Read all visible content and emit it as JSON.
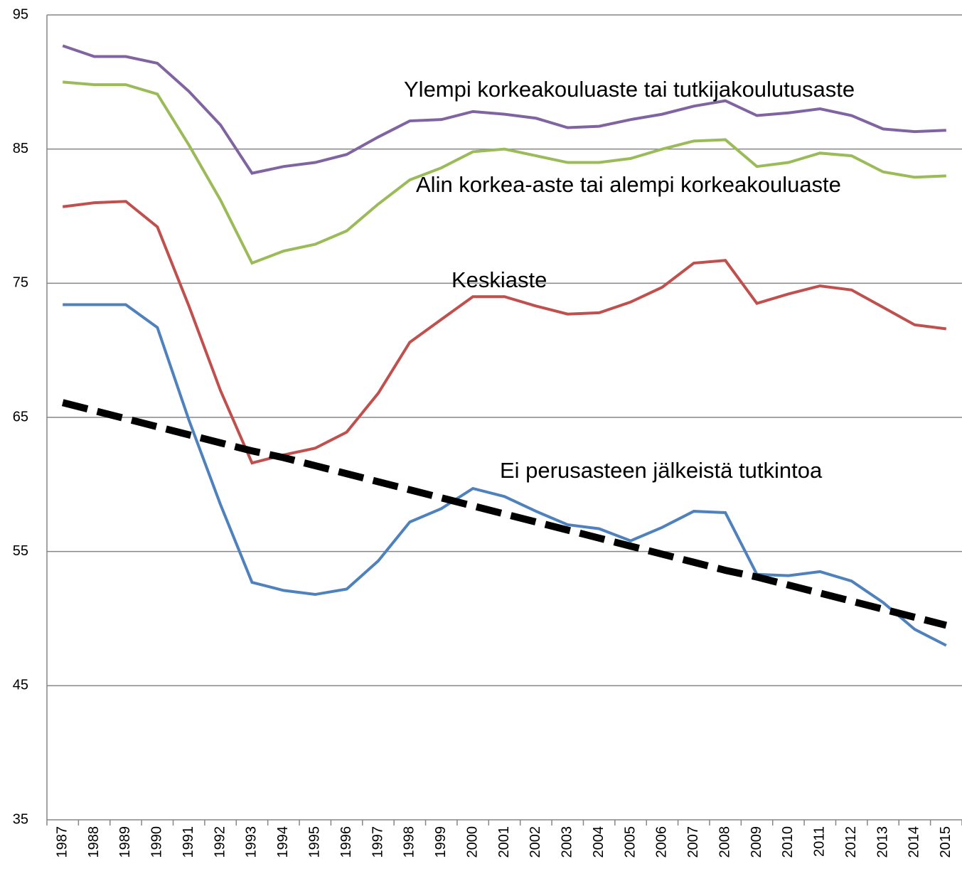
{
  "chart_data": {
    "type": "line",
    "categories": [
      "1987",
      "1988",
      "1989",
      "1990",
      "1991",
      "1992",
      "1993",
      "1994",
      "1995",
      "1996",
      "1997",
      "1998",
      "1999",
      "2000",
      "2001",
      "2002",
      "2003",
      "2004",
      "2005",
      "2006",
      "2007",
      "2008",
      "2009",
      "2010",
      "2011",
      "2012",
      "2013",
      "2014",
      "2015"
    ],
    "series": [
      {
        "color": "#8064a2",
        "values": [
          92.7,
          91.9,
          91.9,
          91.4,
          89.3,
          86.8,
          83.2,
          83.7,
          84.0,
          84.6,
          85.9,
          87.1,
          87.2,
          87.8,
          87.6,
          87.3,
          86.6,
          86.7,
          87.2,
          87.6,
          88.2,
          88.6,
          87.5,
          87.7,
          88.0,
          87.5,
          86.5,
          86.3,
          86.4
        ]
      },
      {
        "color": "#9bbb59",
        "values": [
          90.0,
          89.8,
          89.8,
          89.1,
          85.3,
          81.2,
          76.5,
          77.4,
          77.9,
          78.9,
          80.9,
          82.7,
          83.6,
          84.8,
          85.0,
          84.5,
          84.0,
          84.0,
          84.3,
          85.0,
          85.6,
          85.7,
          83.7,
          84.0,
          84.7,
          84.5,
          83.3,
          82.9,
          83.0
        ]
      },
      {
        "color": "#c0504d",
        "values": [
          80.7,
          81.0,
          81.1,
          79.2,
          73.3,
          67.0,
          61.6,
          62.2,
          62.7,
          63.9,
          66.8,
          70.6,
          72.3,
          74.0,
          74.0,
          73.3,
          72.7,
          72.8,
          73.6,
          74.7,
          76.5,
          76.7,
          73.5,
          74.2,
          74.8,
          74.5,
          73.2,
          71.9,
          71.6
        ]
      },
      {
        "color": "#4f81bd",
        "values": [
          73.4,
          73.4,
          73.4,
          71.7,
          64.8,
          58.5,
          52.7,
          52.1,
          51.8,
          52.2,
          54.3,
          57.2,
          58.2,
          59.7,
          59.1,
          58.0,
          57.0,
          56.7,
          55.8,
          56.8,
          58.0,
          57.9,
          53.3,
          53.2,
          53.5,
          52.8,
          51.2,
          49.2,
          48.0
        ]
      },
      {
        "color": "#000000",
        "dashed": true,
        "values": [
          66.1,
          65.5,
          64.9,
          64.3,
          63.7,
          63.1,
          62.5,
          62.0,
          61.4,
          60.8,
          60.2,
          59.6,
          59.0,
          58.4,
          57.8,
          57.2,
          56.6,
          56.0,
          55.4,
          54.8,
          54.2,
          53.6,
          53.1,
          52.5,
          51.9,
          51.3,
          50.7,
          50.1,
          49.5
        ]
      }
    ],
    "annotations": [
      "Ylempi korkeakouluaste tai tutkijakoulutusaste",
      "Alin korkea-aste tai alempi korkeakouluaste",
      "Keskiaste",
      "Ei perusasteen jälkeistä tutkintoa"
    ],
    "ylim": [
      35,
      95
    ],
    "yticks": [
      35,
      45,
      55,
      65,
      75,
      85,
      95
    ],
    "grid": true
  }
}
